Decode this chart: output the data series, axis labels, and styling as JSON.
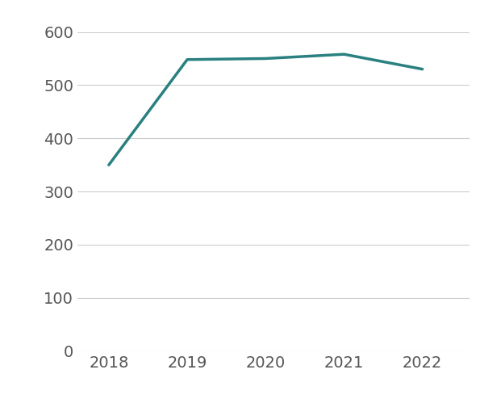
{
  "years": [
    2018,
    2019,
    2020,
    2021,
    2022
  ],
  "values": [
    350,
    548,
    550,
    558,
    530
  ],
  "line_color": "#2a8080",
  "line_width": 2.5,
  "ylim": [
    0,
    630
  ],
  "yticks": [
    0,
    100,
    200,
    300,
    400,
    500,
    600
  ],
  "xticks": [
    2018,
    2019,
    2020,
    2021,
    2022
  ],
  "grid_color": "#cccccc",
  "background_color": "#ffffff",
  "tick_label_fontsize": 14,
  "tick_label_color": "#555555",
  "xlim": [
    2017.6,
    2022.6
  ]
}
